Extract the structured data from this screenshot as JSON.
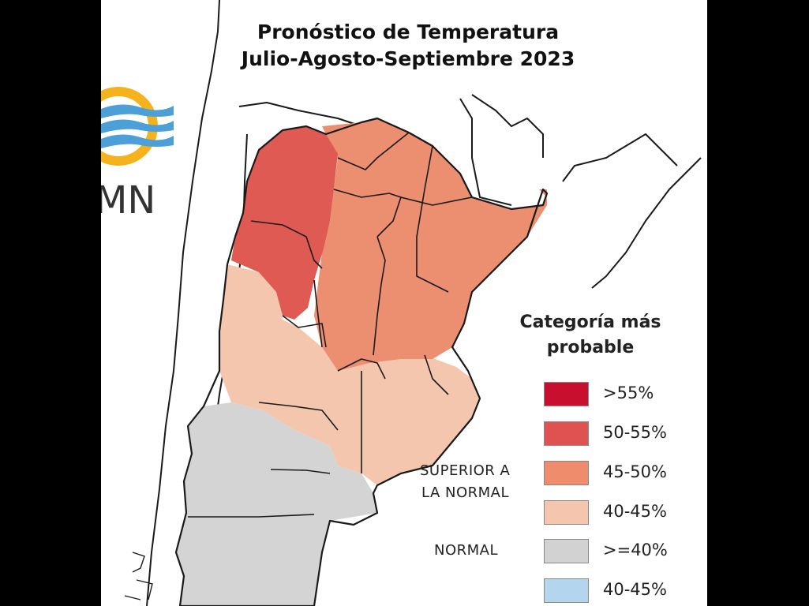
{
  "title": {
    "line1": "Pronóstico de Temperatura",
    "line2": "Julio-Agosto-Septiembre 2023"
  },
  "logo": {
    "text": "MN",
    "icon": "smn-sun-wave-logo-icon"
  },
  "legend": {
    "title_line1": "Categoría más",
    "title_line2": "probable",
    "items": [
      {
        "label": ">55%",
        "color": "#c8102e"
      },
      {
        "label": "50-55%",
        "color": "#e05252"
      },
      {
        "label": "45-50%",
        "color": "#ee8c6c"
      },
      {
        "label": "40-45%",
        "color": "#f5c5ae"
      },
      {
        "label": ">=40%",
        "color": "#d2d2d2"
      },
      {
        "label": "40-45%",
        "color": "#b3d6ee"
      }
    ],
    "category_superior_line1": "SUPERIOR A",
    "category_superior_line2": "LA NORMAL",
    "category_normal": "NORMAL"
  },
  "map_colors": {
    "strong": "#de5a52",
    "medium": "#ec8e70",
    "light": "#f5c6ae",
    "normal": "#d4d4d4",
    "outline": "#1a1a1a"
  }
}
